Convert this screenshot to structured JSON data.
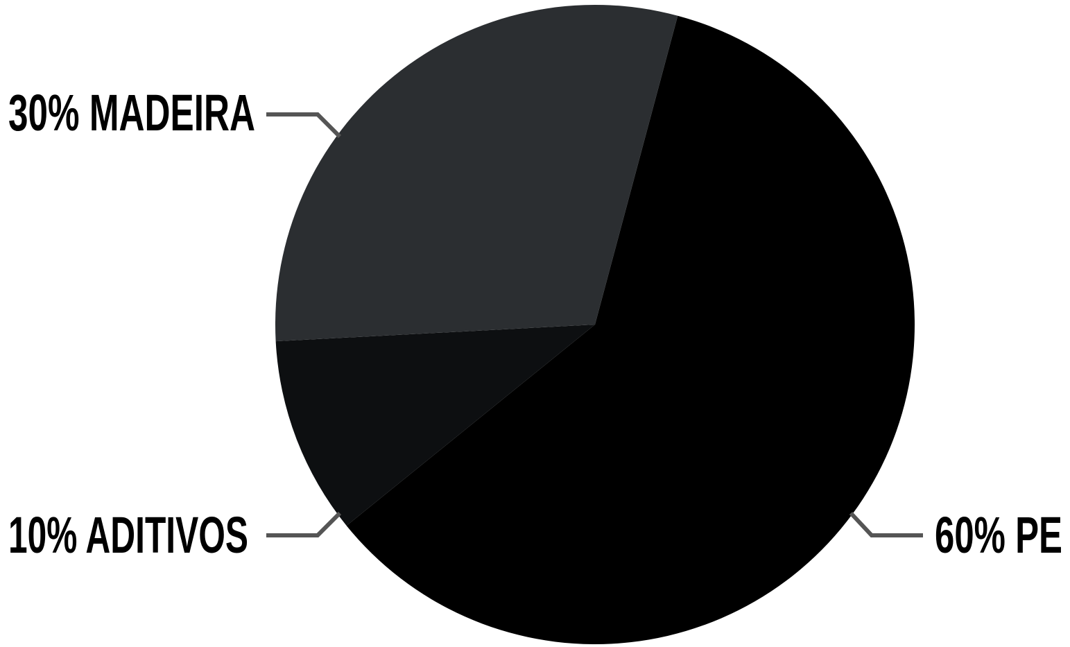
{
  "chart_data": {
    "type": "pie",
    "slices": [
      {
        "name": "PE",
        "value": 60,
        "label": "60% PE",
        "color": "#000000"
      },
      {
        "name": "ADITIVOS",
        "value": 10,
        "label": "10% ADITIVOS",
        "color": "#0d0f11"
      },
      {
        "name": "MADEIRA",
        "value": 30,
        "label": "30% MADEIRA",
        "color": "#2b2e31"
      }
    ],
    "leader_color": "#555555"
  }
}
